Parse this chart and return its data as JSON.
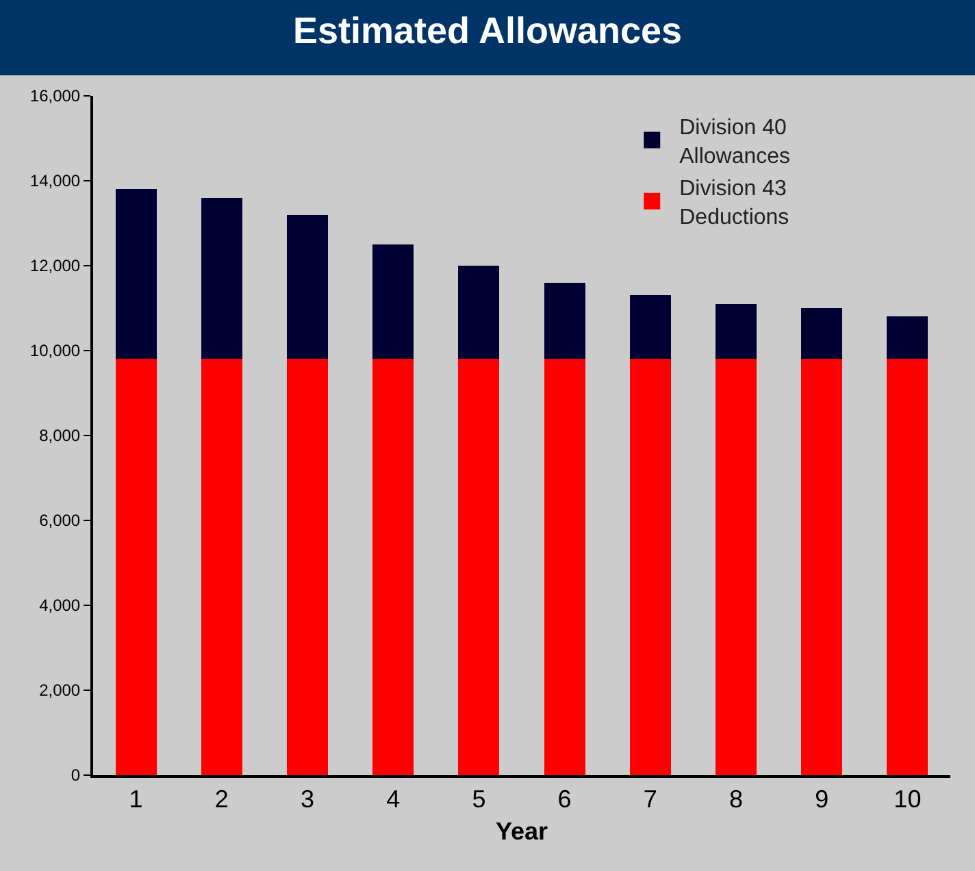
{
  "chart_data": {
    "type": "bar",
    "title": "Estimated Allowances",
    "xlabel": "Year",
    "categories": [
      "1",
      "2",
      "3",
      "4",
      "5",
      "6",
      "7",
      "8",
      "9",
      "10"
    ],
    "stacked": true,
    "series": [
      {
        "name": "Division 43 Deductions",
        "color": "#ff0000",
        "values": [
          9800,
          9800,
          9800,
          9800,
          9800,
          9800,
          9800,
          9800,
          9800,
          9800
        ]
      },
      {
        "name": "Division 40 Allowances",
        "color": "#000033",
        "values": [
          4000,
          3800,
          3400,
          2700,
          2200,
          1800,
          1500,
          1300,
          1200,
          1000
        ]
      }
    ],
    "ylim": [
      0,
      16000
    ],
    "yticks": [
      0,
      {
        "value": 2000,
        "label": "2,000"
      },
      {
        "value": 4000,
        "label": "4,000"
      },
      {
        "value": 6000,
        "label": "6,000"
      },
      {
        "value": 8000,
        "label": "8,000"
      },
      {
        "value": 10000,
        "label": "10,000"
      },
      {
        "value": 12000,
        "label": "12,000"
      },
      {
        "value": 14000,
        "label": "14,000"
      },
      {
        "value": 16000,
        "label": "16,000"
      }
    ],
    "grid": false,
    "legend": "top right"
  }
}
